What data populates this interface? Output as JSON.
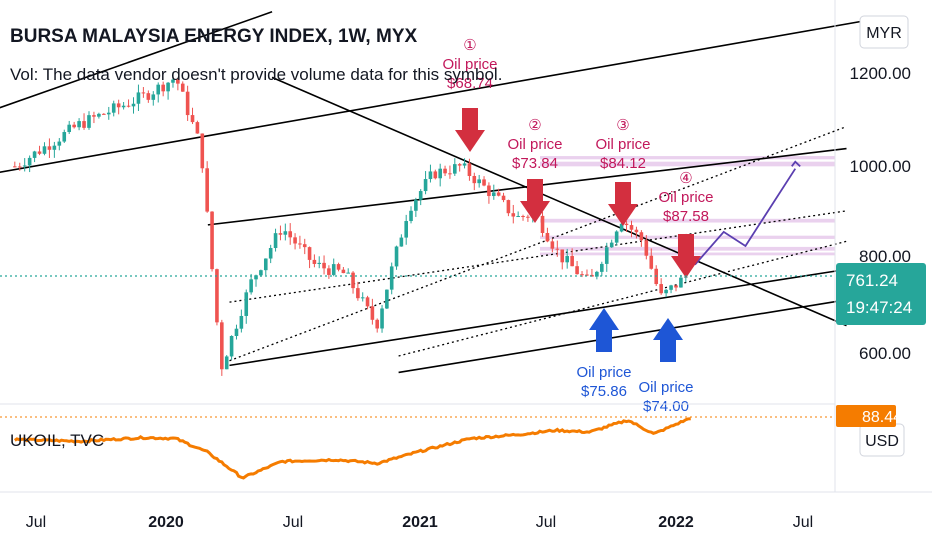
{
  "header": {
    "title": "BURSA MALAYSIA ENERGY INDEX, 1W, MYX",
    "volume_note": "Vol: The data vendor doesn't provide volume data for this symbol."
  },
  "currency_badges": {
    "main": "MYR",
    "lower": "USD"
  },
  "price_scale": {
    "last_price": "761.24",
    "countdown": "19:47:24",
    "lower_last": "88.44",
    "ticks": [
      "1200.00",
      "1000.00",
      "800.00",
      "600.00"
    ]
  },
  "lower_pane": {
    "label": "UKOIL, TVC"
  },
  "annotations": [
    {
      "marker": "①",
      "label": "Oil price",
      "value": "$68.74",
      "color": "red"
    },
    {
      "marker": "②",
      "label": "Oil price",
      "value": "$73.84",
      "color": "red"
    },
    {
      "marker": "③",
      "label": "Oil price",
      "value": "$84.12",
      "color": "red"
    },
    {
      "marker": "④",
      "label": "Oil price",
      "value": "$87.58",
      "color": "red"
    },
    {
      "marker": "",
      "label": "Oil price",
      "value": "$75.86",
      "color": "blue"
    },
    {
      "marker": "",
      "label": "Oil price",
      "value": "$74.00",
      "color": "blue"
    }
  ],
  "colors": {
    "up": "#26a69a",
    "down": "#ef5350",
    "oil_line": "#f57c00",
    "last_price_bg": "#26a69a",
    "oil_price_bg": "#f57c00",
    "arrow_red": "#d32f3f",
    "arrow_blue": "#1e56d6",
    "projection": "#5b3fb0",
    "band": "#e1bee7"
  },
  "chart_data": [
    {
      "type": "candlestick",
      "title": "BURSA MALAYSIA ENERGY INDEX, 1W, MYX",
      "x_ticks": [
        "Jul",
        "2020",
        "Jul",
        "2021",
        "Jul",
        "2022",
        "Jul"
      ],
      "y_ticks": [
        1200,
        1000,
        800,
        600
      ],
      "ylim": [
        500,
        1320
      ],
      "last_value": 761.24,
      "price_path": [
        [
          "2019-06-01",
          990
        ],
        [
          "2019-09-01",
          1080
        ],
        [
          "2019-12-01",
          1140
        ],
        [
          "2020-01-15",
          1180
        ],
        [
          "2020-02-20",
          1030
        ],
        [
          "2020-03-20",
          560
        ],
        [
          "2020-05-01",
          740
        ],
        [
          "2020-06-15",
          860
        ],
        [
          "2020-08-01",
          780
        ],
        [
          "2020-09-15",
          760
        ],
        [
          "2020-10-30",
          650
        ],
        [
          "2020-12-15",
          900
        ],
        [
          "2021-01-20",
          975
        ],
        [
          "2021-03-01",
          990
        ],
        [
          "2021-04-15",
          930
        ],
        [
          "2021-05-20",
          880
        ],
        [
          "2021-06-15",
          890
        ],
        [
          "2021-07-20",
          800
        ],
        [
          "2021-09-01",
          740
        ],
        [
          "2021-10-15",
          880
        ],
        [
          "2021-11-15",
          830
        ],
        [
          "2021-12-10",
          710
        ],
        [
          "2022-01-20",
          761
        ]
      ]
    },
    {
      "type": "line",
      "series": [
        {
          "name": "UKOIL, TVC",
          "last_value": 88.44,
          "values": [
            [
              "2019-06-01",
              64
            ],
            [
              "2019-09-01",
              62
            ],
            [
              "2019-12-01",
              66
            ],
            [
              "2020-01-15",
              65
            ],
            [
              "2020-03-01",
              50
            ],
            [
              "2020-04-20",
              22
            ],
            [
              "2020-06-15",
              40
            ],
            [
              "2020-09-01",
              42
            ],
            [
              "2020-11-01",
              38
            ],
            [
              "2021-01-01",
              51
            ],
            [
              "2021-03-15",
              65
            ],
            [
              "2021-06-01",
              70
            ],
            [
              "2021-07-15",
              74
            ],
            [
              "2021-09-01",
              72
            ],
            [
              "2021-10-25",
              85
            ],
            [
              "2021-12-01",
              70
            ],
            [
              "2022-01-25",
              88.44
            ]
          ]
        }
      ]
    }
  ]
}
